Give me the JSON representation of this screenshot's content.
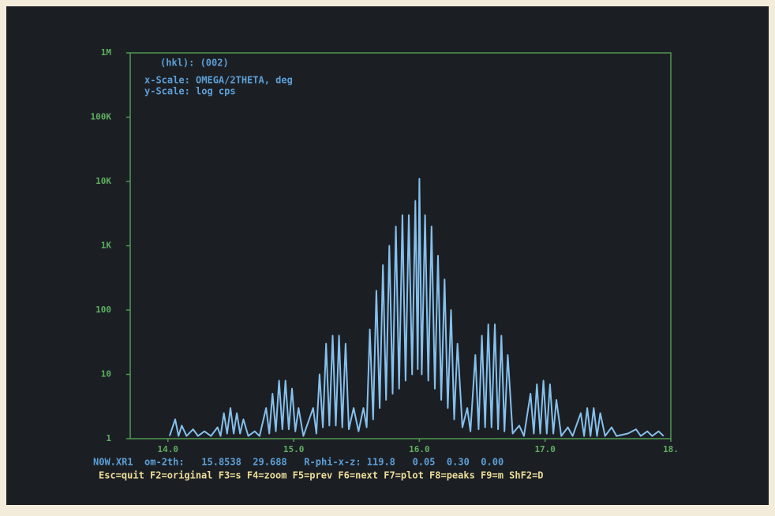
{
  "chart_data": {
    "type": "line",
    "annotations": [
      "(hkl): (002)",
      "x-Scale: OMEGA/2THETA, deg",
      "y-Scale: log cps"
    ],
    "log_y": true,
    "grid": false,
    "xlim": [
      13.7,
      18.0
    ],
    "ylim": [
      1,
      1000000
    ],
    "xticks": [
      {
        "value": 14,
        "label": "14.0"
      },
      {
        "value": 15,
        "label": "15.0"
      },
      {
        "value": 16,
        "label": "16.0"
      },
      {
        "value": 17,
        "label": "17.0"
      },
      {
        "value": 18,
        "label": "18."
      }
    ],
    "yticks": [
      1,
      10,
      100,
      {
        "value": 1000,
        "label": "1K"
      },
      {
        "value": 10000,
        "label": "10K"
      },
      {
        "value": 100000,
        "label": "100K"
      },
      {
        "value": 1000000,
        "label": "1M"
      }
    ],
    "x": [
      14.013,
      14.058,
      14.084,
      14.11,
      14.148,
      14.2,
      14.239,
      14.29,
      14.342,
      14.394,
      14.419,
      14.445,
      14.471,
      14.497,
      14.523,
      14.548,
      14.574,
      14.6,
      14.639,
      14.69,
      14.729,
      14.781,
      14.806,
      14.832,
      14.858,
      14.884,
      14.91,
      14.935,
      14.961,
      14.987,
      15.013,
      15.039,
      15.077,
      15.155,
      15.181,
      15.206,
      15.232,
      15.258,
      15.284,
      15.31,
      15.335,
      15.361,
      15.387,
      15.413,
      15.439,
      15.477,
      15.516,
      15.555,
      15.581,
      15.606,
      15.632,
      15.658,
      15.684,
      15.71,
      15.735,
      15.761,
      15.787,
      15.813,
      15.839,
      15.865,
      15.89,
      15.916,
      15.942,
      15.968,
      15.987,
      16.0,
      16.019,
      16.045,
      16.071,
      16.097,
      16.123,
      16.148,
      16.174,
      16.2,
      16.226,
      16.252,
      16.277,
      16.303,
      16.342,
      16.381,
      16.406,
      16.445,
      16.471,
      16.497,
      16.523,
      16.548,
      16.574,
      16.6,
      16.626,
      16.652,
      16.677,
      16.703,
      16.742,
      16.794,
      16.832,
      16.884,
      16.91,
      16.935,
      16.961,
      16.987,
      17.013,
      17.039,
      17.065,
      17.09,
      17.129,
      17.181,
      17.219,
      17.284,
      17.31,
      17.335,
      17.361,
      17.387,
      17.413,
      17.439,
      17.477,
      17.529,
      17.568,
      17.658,
      17.723,
      17.761,
      17.813,
      17.852,
      17.903,
      17.942
    ],
    "series": [
      {
        "color": "#86c0ec",
        "values": [
          1.1,
          2,
          1.1,
          1.6,
          1.1,
          1.4,
          1.1,
          1.3,
          1.1,
          1.5,
          1.1,
          2.5,
          1.2,
          3,
          1.2,
          2.5,
          1.2,
          2,
          1.1,
          1.3,
          1.1,
          3,
          1.2,
          5,
          1.3,
          8,
          1.4,
          8,
          1.4,
          6,
          1.3,
          3,
          1.1,
          3,
          1.2,
          10,
          1.5,
          30,
          1.6,
          40,
          1.6,
          40,
          1.5,
          30,
          1.4,
          3,
          1.3,
          3,
          1.5,
          50,
          2,
          200,
          3,
          500,
          4,
          1000,
          5,
          2000,
          6,
          3000,
          8,
          3000,
          10,
          5000,
          12,
          11000,
          10,
          3000,
          8,
          2000,
          6,
          700,
          4,
          300,
          3,
          100,
          2,
          30,
          1.5,
          3,
          1.3,
          20,
          1.4,
          40,
          1.5,
          60,
          1.5,
          60,
          1.4,
          40,
          1.3,
          20,
          1.2,
          1.6,
          1.1,
          5,
          1.2,
          7,
          1.2,
          8,
          1.2,
          7,
          1.2,
          4,
          1.1,
          1.5,
          1.1,
          2.5,
          1.1,
          3,
          1.1,
          3,
          1.1,
          2.5,
          1.1,
          1.5,
          1.1,
          1.2,
          1.4,
          1.1,
          1.3,
          1.1,
          1.3,
          1.1
        ]
      }
    ]
  },
  "status_line": "N0W.XR1  om-2th:   15.8538  29.688   R-phi-x-z: 119.8   0.05  0.30  0.00",
  "function_keys": "Esc=quit F2=original F3=s F4=zoom F5=prev F6=next F7=plot F8=peaks F9=m ShF2=D"
}
